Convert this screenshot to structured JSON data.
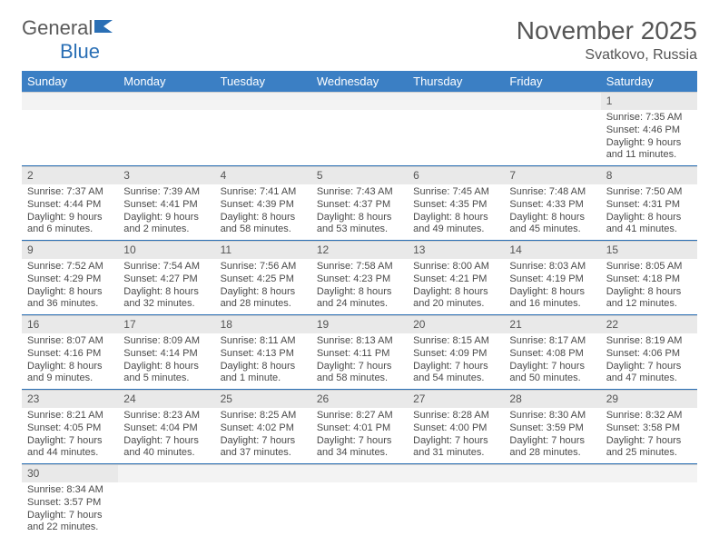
{
  "logo": {
    "text1": "General",
    "text2": "Blue"
  },
  "title": "November 2025",
  "location": "Svatkovo, Russia",
  "colors": {
    "header_bg": "#3b7fc4",
    "header_fg": "#ffffff",
    "row_border": "#2a6fb5",
    "daynum_bg": "#e9e9e9",
    "text": "#4a4a4a"
  },
  "day_headers": [
    "Sunday",
    "Monday",
    "Tuesday",
    "Wednesday",
    "Thursday",
    "Friday",
    "Saturday"
  ],
  "weeks": [
    [
      {
        "num": "",
        "lines": []
      },
      {
        "num": "",
        "lines": []
      },
      {
        "num": "",
        "lines": []
      },
      {
        "num": "",
        "lines": []
      },
      {
        "num": "",
        "lines": []
      },
      {
        "num": "",
        "lines": []
      },
      {
        "num": "1",
        "lines": [
          "Sunrise: 7:35 AM",
          "Sunset: 4:46 PM",
          "Daylight: 9 hours and 11 minutes."
        ]
      }
    ],
    [
      {
        "num": "2",
        "lines": [
          "Sunrise: 7:37 AM",
          "Sunset: 4:44 PM",
          "Daylight: 9 hours and 6 minutes."
        ]
      },
      {
        "num": "3",
        "lines": [
          "Sunrise: 7:39 AM",
          "Sunset: 4:41 PM",
          "Daylight: 9 hours and 2 minutes."
        ]
      },
      {
        "num": "4",
        "lines": [
          "Sunrise: 7:41 AM",
          "Sunset: 4:39 PM",
          "Daylight: 8 hours and 58 minutes."
        ]
      },
      {
        "num": "5",
        "lines": [
          "Sunrise: 7:43 AM",
          "Sunset: 4:37 PM",
          "Daylight: 8 hours and 53 minutes."
        ]
      },
      {
        "num": "6",
        "lines": [
          "Sunrise: 7:45 AM",
          "Sunset: 4:35 PM",
          "Daylight: 8 hours and 49 minutes."
        ]
      },
      {
        "num": "7",
        "lines": [
          "Sunrise: 7:48 AM",
          "Sunset: 4:33 PM",
          "Daylight: 8 hours and 45 minutes."
        ]
      },
      {
        "num": "8",
        "lines": [
          "Sunrise: 7:50 AM",
          "Sunset: 4:31 PM",
          "Daylight: 8 hours and 41 minutes."
        ]
      }
    ],
    [
      {
        "num": "9",
        "lines": [
          "Sunrise: 7:52 AM",
          "Sunset: 4:29 PM",
          "Daylight: 8 hours and 36 minutes."
        ]
      },
      {
        "num": "10",
        "lines": [
          "Sunrise: 7:54 AM",
          "Sunset: 4:27 PM",
          "Daylight: 8 hours and 32 minutes."
        ]
      },
      {
        "num": "11",
        "lines": [
          "Sunrise: 7:56 AM",
          "Sunset: 4:25 PM",
          "Daylight: 8 hours and 28 minutes."
        ]
      },
      {
        "num": "12",
        "lines": [
          "Sunrise: 7:58 AM",
          "Sunset: 4:23 PM",
          "Daylight: 8 hours and 24 minutes."
        ]
      },
      {
        "num": "13",
        "lines": [
          "Sunrise: 8:00 AM",
          "Sunset: 4:21 PM",
          "Daylight: 8 hours and 20 minutes."
        ]
      },
      {
        "num": "14",
        "lines": [
          "Sunrise: 8:03 AM",
          "Sunset: 4:19 PM",
          "Daylight: 8 hours and 16 minutes."
        ]
      },
      {
        "num": "15",
        "lines": [
          "Sunrise: 8:05 AM",
          "Sunset: 4:18 PM",
          "Daylight: 8 hours and 12 minutes."
        ]
      }
    ],
    [
      {
        "num": "16",
        "lines": [
          "Sunrise: 8:07 AM",
          "Sunset: 4:16 PM",
          "Daylight: 8 hours and 9 minutes."
        ]
      },
      {
        "num": "17",
        "lines": [
          "Sunrise: 8:09 AM",
          "Sunset: 4:14 PM",
          "Daylight: 8 hours and 5 minutes."
        ]
      },
      {
        "num": "18",
        "lines": [
          "Sunrise: 8:11 AM",
          "Sunset: 4:13 PM",
          "Daylight: 8 hours and 1 minute."
        ]
      },
      {
        "num": "19",
        "lines": [
          "Sunrise: 8:13 AM",
          "Sunset: 4:11 PM",
          "Daylight: 7 hours and 58 minutes."
        ]
      },
      {
        "num": "20",
        "lines": [
          "Sunrise: 8:15 AM",
          "Sunset: 4:09 PM",
          "Daylight: 7 hours and 54 minutes."
        ]
      },
      {
        "num": "21",
        "lines": [
          "Sunrise: 8:17 AM",
          "Sunset: 4:08 PM",
          "Daylight: 7 hours and 50 minutes."
        ]
      },
      {
        "num": "22",
        "lines": [
          "Sunrise: 8:19 AM",
          "Sunset: 4:06 PM",
          "Daylight: 7 hours and 47 minutes."
        ]
      }
    ],
    [
      {
        "num": "23",
        "lines": [
          "Sunrise: 8:21 AM",
          "Sunset: 4:05 PM",
          "Daylight: 7 hours and 44 minutes."
        ]
      },
      {
        "num": "24",
        "lines": [
          "Sunrise: 8:23 AM",
          "Sunset: 4:04 PM",
          "Daylight: 7 hours and 40 minutes."
        ]
      },
      {
        "num": "25",
        "lines": [
          "Sunrise: 8:25 AM",
          "Sunset: 4:02 PM",
          "Daylight: 7 hours and 37 minutes."
        ]
      },
      {
        "num": "26",
        "lines": [
          "Sunrise: 8:27 AM",
          "Sunset: 4:01 PM",
          "Daylight: 7 hours and 34 minutes."
        ]
      },
      {
        "num": "27",
        "lines": [
          "Sunrise: 8:28 AM",
          "Sunset: 4:00 PM",
          "Daylight: 7 hours and 31 minutes."
        ]
      },
      {
        "num": "28",
        "lines": [
          "Sunrise: 8:30 AM",
          "Sunset: 3:59 PM",
          "Daylight: 7 hours and 28 minutes."
        ]
      },
      {
        "num": "29",
        "lines": [
          "Sunrise: 8:32 AM",
          "Sunset: 3:58 PM",
          "Daylight: 7 hours and 25 minutes."
        ]
      }
    ],
    [
      {
        "num": "30",
        "lines": [
          "Sunrise: 8:34 AM",
          "Sunset: 3:57 PM",
          "Daylight: 7 hours and 22 minutes."
        ]
      },
      {
        "num": "",
        "lines": []
      },
      {
        "num": "",
        "lines": []
      },
      {
        "num": "",
        "lines": []
      },
      {
        "num": "",
        "lines": []
      },
      {
        "num": "",
        "lines": []
      },
      {
        "num": "",
        "lines": []
      }
    ]
  ]
}
